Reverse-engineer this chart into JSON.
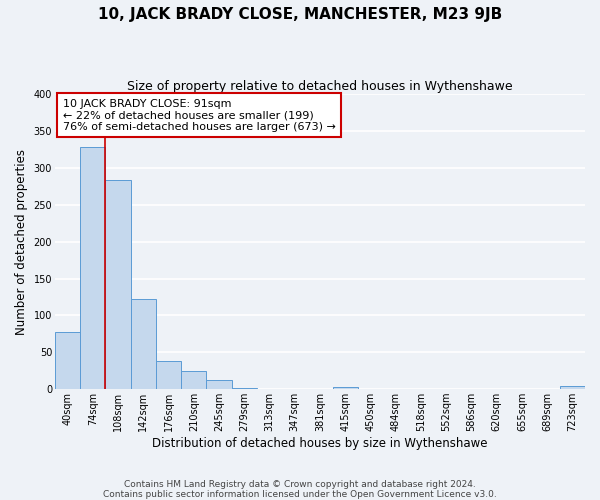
{
  "title": "10, JACK BRADY CLOSE, MANCHESTER, M23 9JB",
  "subtitle": "Size of property relative to detached houses in Wythenshawe",
  "xlabel": "Distribution of detached houses by size in Wythenshawe",
  "ylabel": "Number of detached properties",
  "bin_labels": [
    "40sqm",
    "74sqm",
    "108sqm",
    "142sqm",
    "176sqm",
    "210sqm",
    "245sqm",
    "279sqm",
    "313sqm",
    "347sqm",
    "381sqm",
    "415sqm",
    "450sqm",
    "484sqm",
    "518sqm",
    "552sqm",
    "586sqm",
    "620sqm",
    "655sqm",
    "689sqm",
    "723sqm"
  ],
  "bar_heights": [
    77,
    328,
    283,
    122,
    38,
    24,
    13,
    2,
    0,
    0,
    0,
    3,
    0,
    0,
    0,
    0,
    0,
    0,
    0,
    0,
    4
  ],
  "bar_color": "#c5d8ed",
  "bar_edge_color": "#5b9bd5",
  "ylim": [
    0,
    400
  ],
  "yticks": [
    0,
    50,
    100,
    150,
    200,
    250,
    300,
    350,
    400
  ],
  "red_line_x": 1.5,
  "property_line_color": "#cc0000",
  "annotation_line1": "10 JACK BRADY CLOSE: 91sqm",
  "annotation_line2": "← 22% of detached houses are smaller (199)",
  "annotation_line3": "76% of semi-detached houses are larger (673) →",
  "annotation_box_color": "#ffffff",
  "annotation_box_edge": "#cc0000",
  "footer_line1": "Contains HM Land Registry data © Crown copyright and database right 2024.",
  "footer_line2": "Contains public sector information licensed under the Open Government Licence v3.0.",
  "background_color": "#eef2f7",
  "plot_background": "#eef2f7",
  "grid_color": "#ffffff",
  "title_fontsize": 11,
  "subtitle_fontsize": 9,
  "ylabel_fontsize": 8.5,
  "xlabel_fontsize": 8.5,
  "tick_fontsize": 7,
  "annotation_fontsize": 8,
  "footer_fontsize": 6.5
}
